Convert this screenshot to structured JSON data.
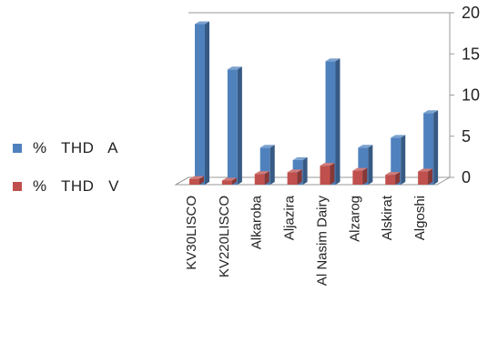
{
  "chart_data": {
    "type": "bar",
    "categories": [
      "KV30LISCO",
      "KV220LISCO",
      "Alkaroba",
      "Aljazira",
      "Al Nasim Dairy",
      "Alzarog",
      "Alskirat",
      "Algoshi"
    ],
    "series": [
      {
        "name": "%   THD   A",
        "values": [
          19.5,
          14.0,
          4.5,
          3.0,
          15.0,
          4.5,
          5.7,
          8.7
        ],
        "color": "#4F81BD"
      },
      {
        "name": "%   THD   V",
        "values": [
          0.7,
          0.5,
          1.3,
          1.5,
          2.3,
          1.7,
          1.2,
          1.6
        ],
        "color": "#C0504D"
      }
    ],
    "ylim": [
      0,
      20
    ],
    "yticks": [
      "0",
      "5",
      "10",
      "15",
      "20"
    ],
    "yaxis_position": "right",
    "grid": false,
    "legend_position": "left",
    "style": "3d-column"
  }
}
